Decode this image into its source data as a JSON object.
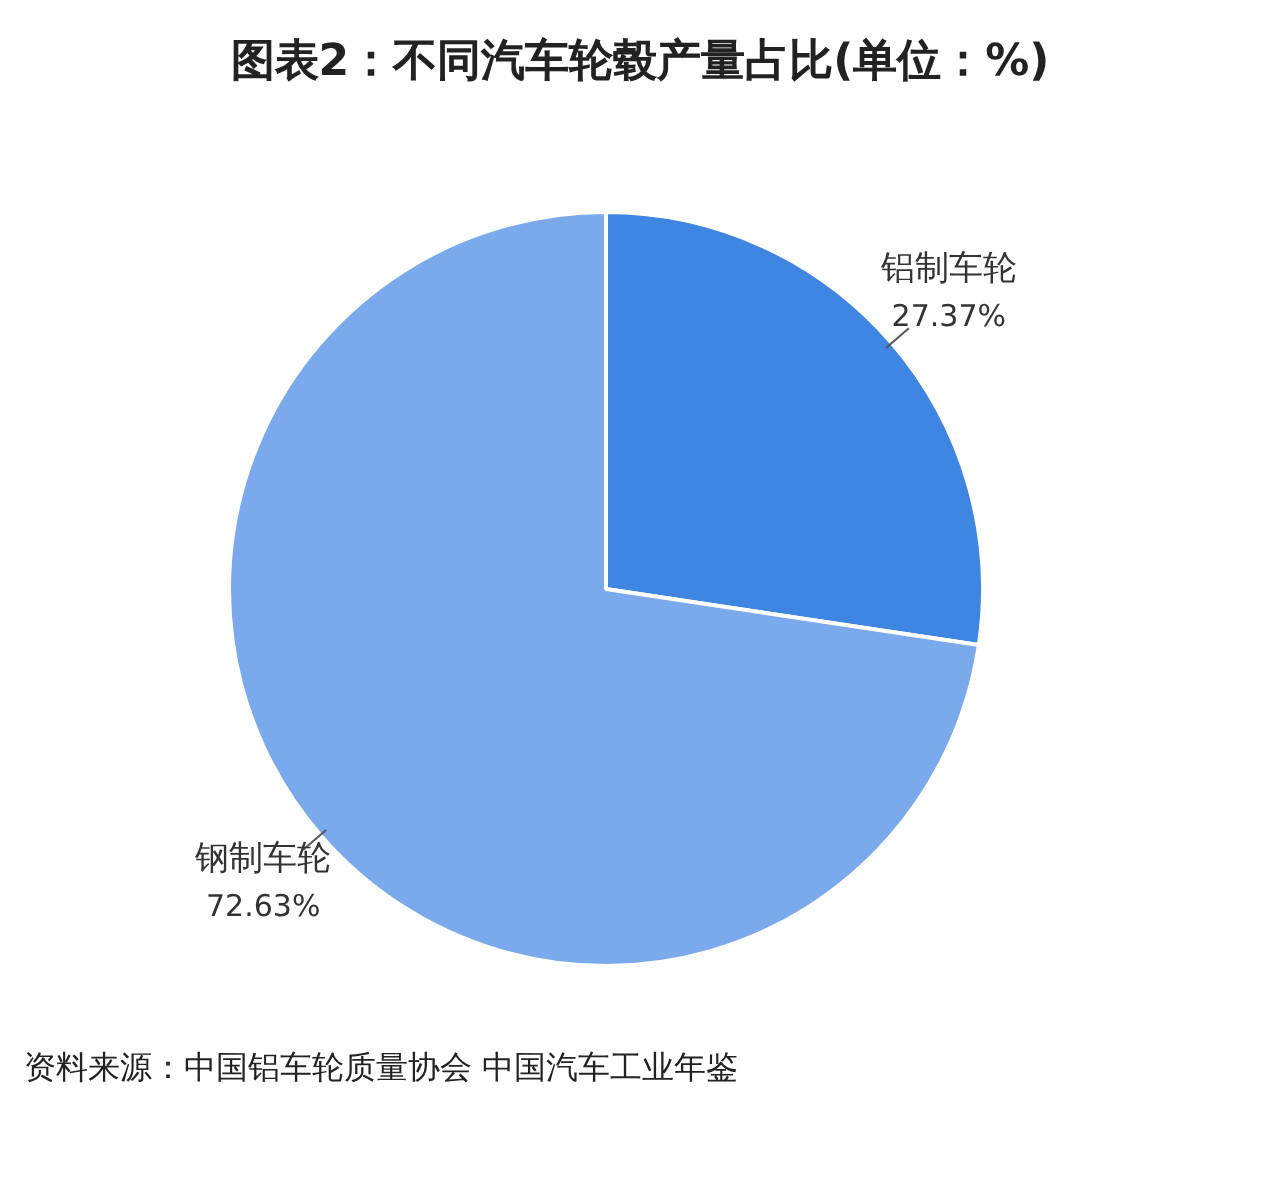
{
  "chart_data": {
    "type": "pie",
    "title": "图表2：不同汽车轮毂产量占比(单位：%)",
    "categories": [
      "铝制车轮",
      "钢制车轮"
    ],
    "values": [
      27.37,
      72.63
    ],
    "value_labels": [
      "27.37%",
      "72.63%"
    ],
    "colors": [
      "#3f86e2",
      "#7aaaec"
    ],
    "legend": false,
    "annotations": [
      "资料来源：中国铝车轮质量协会 中国汽车工业年鉴"
    ]
  }
}
